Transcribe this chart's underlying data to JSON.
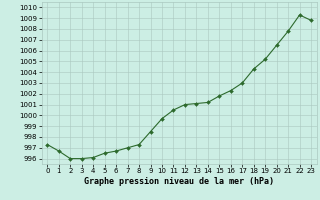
{
  "x": [
    0,
    1,
    2,
    3,
    4,
    5,
    6,
    7,
    8,
    9,
    10,
    11,
    12,
    13,
    14,
    15,
    16,
    17,
    18,
    19,
    20,
    21,
    22,
    23
  ],
  "y": [
    997.3,
    996.7,
    996.0,
    996.0,
    996.1,
    996.5,
    996.7,
    997.0,
    997.3,
    998.5,
    999.7,
    1000.5,
    1001.0,
    1001.1,
    1001.2,
    1001.8,
    1002.3,
    1003.0,
    1004.3,
    1005.2,
    1006.5,
    1007.8,
    1009.3,
    1008.8
  ],
  "line_color": "#2d6a2d",
  "marker": "D",
  "marker_size": 2.0,
  "line_width": 0.8,
  "bg_color": "#cceee4",
  "grid_color": "#aac8c0",
  "ylabel_values": [
    996,
    997,
    998,
    999,
    1000,
    1001,
    1002,
    1003,
    1004,
    1005,
    1006,
    1007,
    1008,
    1009,
    1010
  ],
  "ylim": [
    995.5,
    1010.5
  ],
  "xlim": [
    -0.5,
    23.5
  ],
  "xlabel": "Graphe pression niveau de la mer (hPa)",
  "xlabel_fontsize": 6.0,
  "tick_fontsize": 5.0,
  "ytick_fontsize": 5.0
}
